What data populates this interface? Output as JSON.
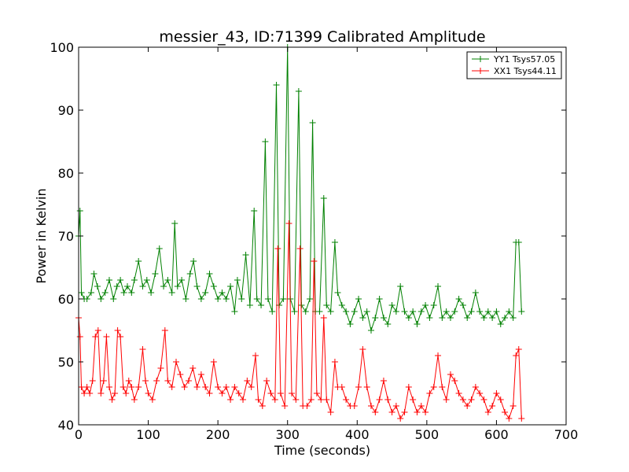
{
  "chart_data": {
    "type": "line",
    "title": "messier_43, ID:71399 Calibrated Amplitude",
    "xlabel": "Time (seconds)",
    "ylabel": "Power in Kelvin",
    "xlim": [
      0,
      700
    ],
    "ylim": [
      40,
      100
    ],
    "xticks": [
      0,
      100,
      200,
      300,
      400,
      500,
      600,
      700
    ],
    "yticks": [
      40,
      50,
      60,
      70,
      80,
      90,
      100
    ],
    "grid": false,
    "legend_position": "top-right",
    "marker": "plus",
    "series": [
      {
        "name": "YY1 Tsys57.05",
        "color": "#008000",
        "points": [
          [
            0,
            70
          ],
          [
            2,
            74
          ],
          [
            4,
            61
          ],
          [
            8,
            60
          ],
          [
            12,
            60
          ],
          [
            18,
            61
          ],
          [
            22,
            64
          ],
          [
            27,
            62
          ],
          [
            32,
            60
          ],
          [
            38,
            61
          ],
          [
            44,
            63
          ],
          [
            50,
            60
          ],
          [
            55,
            62
          ],
          [
            60,
            63
          ],
          [
            65,
            61
          ],
          [
            70,
            62
          ],
          [
            76,
            61
          ],
          [
            80,
            63
          ],
          [
            86,
            66
          ],
          [
            92,
            62
          ],
          [
            98,
            63
          ],
          [
            104,
            61
          ],
          [
            110,
            64
          ],
          [
            116,
            68
          ],
          [
            122,
            62
          ],
          [
            128,
            63
          ],
          [
            134,
            61
          ],
          [
            138,
            72
          ],
          [
            142,
            62
          ],
          [
            148,
            63
          ],
          [
            154,
            60
          ],
          [
            160,
            64
          ],
          [
            165,
            66
          ],
          [
            170,
            62
          ],
          [
            176,
            60
          ],
          [
            182,
            61
          ],
          [
            188,
            64
          ],
          [
            194,
            62
          ],
          [
            200,
            60
          ],
          [
            206,
            61
          ],
          [
            212,
            60
          ],
          [
            218,
            62
          ],
          [
            224,
            58
          ],
          [
            228,
            63
          ],
          [
            234,
            60
          ],
          [
            240,
            67
          ],
          [
            246,
            59
          ],
          [
            252,
            74
          ],
          [
            256,
            60
          ],
          [
            262,
            59
          ],
          [
            268,
            85
          ],
          [
            272,
            60
          ],
          [
            278,
            58
          ],
          [
            284,
            94
          ],
          [
            288,
            59
          ],
          [
            294,
            60
          ],
          [
            300,
            100
          ],
          [
            304,
            60
          ],
          [
            310,
            58
          ],
          [
            316,
            93
          ],
          [
            320,
            59
          ],
          [
            326,
            58
          ],
          [
            332,
            60
          ],
          [
            336,
            88
          ],
          [
            340,
            58
          ],
          [
            346,
            58
          ],
          [
            352,
            76
          ],
          [
            356,
            59
          ],
          [
            362,
            58
          ],
          [
            368,
            69
          ],
          [
            372,
            61
          ],
          [
            378,
            59
          ],
          [
            384,
            58
          ],
          [
            390,
            56
          ],
          [
            396,
            58
          ],
          [
            402,
            60
          ],
          [
            408,
            57
          ],
          [
            414,
            58
          ],
          [
            420,
            55
          ],
          [
            426,
            57
          ],
          [
            432,
            60
          ],
          [
            438,
            57
          ],
          [
            444,
            56
          ],
          [
            450,
            59
          ],
          [
            456,
            58
          ],
          [
            462,
            62
          ],
          [
            468,
            58
          ],
          [
            474,
            57
          ],
          [
            480,
            58
          ],
          [
            486,
            56
          ],
          [
            492,
            58
          ],
          [
            498,
            59
          ],
          [
            504,
            57
          ],
          [
            510,
            59
          ],
          [
            516,
            62
          ],
          [
            522,
            57
          ],
          [
            528,
            58
          ],
          [
            534,
            57
          ],
          [
            540,
            58
          ],
          [
            546,
            60
          ],
          [
            552,
            59
          ],
          [
            558,
            57
          ],
          [
            564,
            58
          ],
          [
            570,
            61
          ],
          [
            576,
            58
          ],
          [
            582,
            57
          ],
          [
            588,
            58
          ],
          [
            594,
            57
          ],
          [
            600,
            58
          ],
          [
            606,
            56
          ],
          [
            612,
            57
          ],
          [
            618,
            58
          ],
          [
            624,
            57
          ],
          [
            628,
            69
          ],
          [
            632,
            69
          ],
          [
            636,
            58
          ]
        ]
      },
      {
        "name": "XX1 Tsys44.11",
        "color": "#ff0000",
        "points": [
          [
            0,
            57
          ],
          [
            2,
            54
          ],
          [
            4,
            46
          ],
          [
            8,
            45
          ],
          [
            12,
            46
          ],
          [
            16,
            45
          ],
          [
            20,
            47
          ],
          [
            24,
            54
          ],
          [
            28,
            55
          ],
          [
            32,
            45
          ],
          [
            36,
            47
          ],
          [
            40,
            54
          ],
          [
            44,
            46
          ],
          [
            48,
            44
          ],
          [
            52,
            45
          ],
          [
            56,
            55
          ],
          [
            60,
            54
          ],
          [
            64,
            46
          ],
          [
            68,
            45
          ],
          [
            72,
            47
          ],
          [
            76,
            46
          ],
          [
            80,
            44
          ],
          [
            86,
            46
          ],
          [
            92,
            52
          ],
          [
            96,
            47
          ],
          [
            100,
            45
          ],
          [
            106,
            44
          ],
          [
            112,
            47
          ],
          [
            118,
            49
          ],
          [
            124,
            55
          ],
          [
            128,
            47
          ],
          [
            134,
            46
          ],
          [
            140,
            50
          ],
          [
            146,
            48
          ],
          [
            152,
            46
          ],
          [
            158,
            47
          ],
          [
            164,
            49
          ],
          [
            170,
            46
          ],
          [
            176,
            48
          ],
          [
            182,
            46
          ],
          [
            188,
            45
          ],
          [
            194,
            50
          ],
          [
            200,
            46
          ],
          [
            206,
            45
          ],
          [
            212,
            46
          ],
          [
            218,
            44
          ],
          [
            224,
            46
          ],
          [
            230,
            45
          ],
          [
            236,
            44
          ],
          [
            242,
            47
          ],
          [
            248,
            46
          ],
          [
            254,
            51
          ],
          [
            258,
            44
          ],
          [
            264,
            43
          ],
          [
            270,
            47
          ],
          [
            276,
            45
          ],
          [
            282,
            44
          ],
          [
            286,
            68
          ],
          [
            290,
            45
          ],
          [
            296,
            43
          ],
          [
            302,
            72
          ],
          [
            306,
            45
          ],
          [
            312,
            44
          ],
          [
            318,
            68
          ],
          [
            322,
            43
          ],
          [
            328,
            43
          ],
          [
            334,
            44
          ],
          [
            338,
            66
          ],
          [
            342,
            45
          ],
          [
            348,
            44
          ],
          [
            352,
            57
          ],
          [
            356,
            44
          ],
          [
            362,
            42
          ],
          [
            368,
            50
          ],
          [
            372,
            46
          ],
          [
            378,
            46
          ],
          [
            384,
            44
          ],
          [
            390,
            43
          ],
          [
            396,
            43
          ],
          [
            402,
            46
          ],
          [
            408,
            52
          ],
          [
            414,
            46
          ],
          [
            420,
            43
          ],
          [
            426,
            42
          ],
          [
            432,
            44
          ],
          [
            438,
            47
          ],
          [
            444,
            44
          ],
          [
            450,
            42
          ],
          [
            456,
            43
          ],
          [
            462,
            41
          ],
          [
            468,
            42
          ],
          [
            474,
            46
          ],
          [
            480,
            44
          ],
          [
            486,
            42
          ],
          [
            492,
            43
          ],
          [
            498,
            42
          ],
          [
            504,
            45
          ],
          [
            510,
            46
          ],
          [
            516,
            51
          ],
          [
            522,
            46
          ],
          [
            528,
            44
          ],
          [
            534,
            48
          ],
          [
            540,
            47
          ],
          [
            546,
            45
          ],
          [
            552,
            44
          ],
          [
            558,
            43
          ],
          [
            564,
            44
          ],
          [
            570,
            46
          ],
          [
            576,
            45
          ],
          [
            582,
            44
          ],
          [
            588,
            42
          ],
          [
            594,
            43
          ],
          [
            600,
            45
          ],
          [
            606,
            44
          ],
          [
            612,
            42
          ],
          [
            618,
            41
          ],
          [
            624,
            43
          ],
          [
            628,
            51
          ],
          [
            632,
            52
          ],
          [
            636,
            41
          ]
        ]
      }
    ]
  }
}
